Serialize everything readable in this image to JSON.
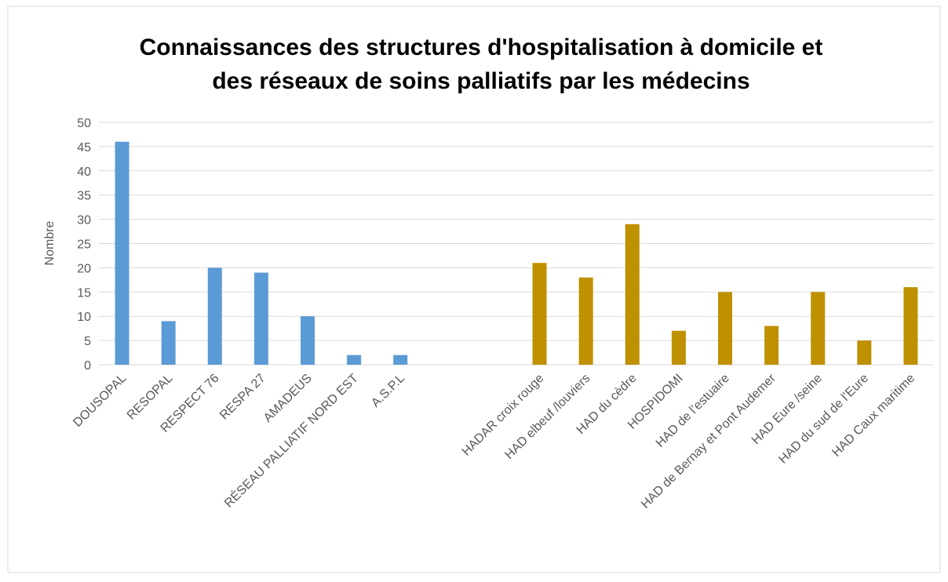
{
  "chart_data": {
    "type": "bar",
    "title": [
      "Connaissances des structures d'hospitalisation à domicile et",
      "des réseaux de soins palliatifs par les médecins"
    ],
    "y_label": "Nombre",
    "categories": [
      "DOUSOPAL",
      "RESOPAL",
      "RESPECT 76",
      "RESPA 27",
      "AMADEUS",
      "RÉSEAU PALLIATIF NORD EST",
      "A.S.P.L",
      null,
      null,
      "HADAR croix rouge",
      "HAD elbeuf /louviers",
      "HAD du cèdre",
      "HOSPIDOMI",
      "HAD de l’estuaire",
      "HAD de Bernay et Pont Audemer",
      "HAD Eure /seine",
      "HAD du sud de l’Eure",
      "HAD Caux maritime"
    ],
    "series": [
      {
        "color": "#5b9bd5",
        "values": [
          46,
          9,
          20,
          19,
          10,
          2,
          2,
          null,
          null,
          null,
          null,
          null,
          null,
          null,
          null,
          null,
          null,
          null
        ]
      },
      {
        "color": "#bf9000",
        "values": [
          null,
          null,
          null,
          null,
          null,
          null,
          null,
          null,
          null,
          21,
          18,
          29,
          7,
          15,
          8,
          15,
          5,
          16
        ]
      }
    ],
    "ylim": [
      0,
      50
    ],
    "yticks": [
      0,
      5,
      10,
      15,
      20,
      25,
      30,
      35,
      40,
      45,
      50
    ],
    "grid": true
  }
}
